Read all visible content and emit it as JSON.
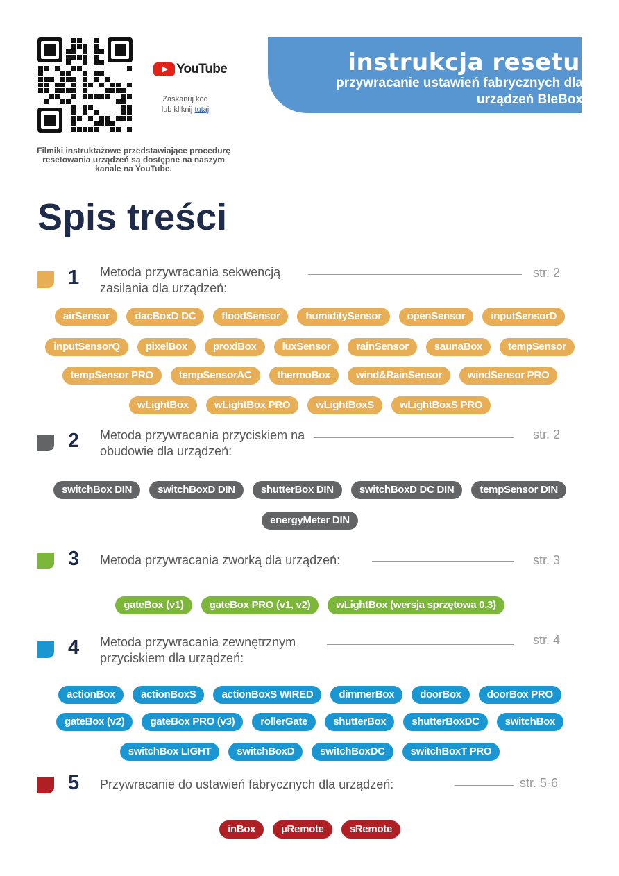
{
  "header": {
    "youtube": "YouTube",
    "scan_line1": "Zaskanuj kod",
    "scan_line2": "lub kliknij",
    "scan_link": "tutaj",
    "note": "Filmiki instruktażowe przedstawiające procedurę resetowania urządzeń są dostępne na naszym kanale na YouTube.",
    "banner_title": "instrukcja resetu",
    "banner_subtitle": "przywracanie ustawień fabrycznych dla urządzeń BleBox"
  },
  "toc_title": "Spis treści",
  "sections": [
    {
      "number": 1,
      "title": "Metoda przywracania sekwencją zasilania dla urządzeń:",
      "page": "str. 2",
      "device_rows": [
        [
          "airSensor",
          "dacBoxD DC",
          "floodSensor",
          "humiditySensor",
          "openSensor",
          "inputSensorD"
        ],
        [
          "inputSensorQ",
          "pixelBox",
          "proxiBox",
          "luxSensor",
          "rainSensor",
          "saunaBox",
          "tempSensor"
        ],
        [
          "tempSensor PRO",
          "tempSensorAC",
          "thermoBox",
          "wind&RainSensor",
          "windSensor PRO"
        ],
        [
          "wLightBox",
          "wLightBox PRO",
          "wLightBoxS",
          "wLightBoxS PRO"
        ]
      ]
    },
    {
      "number": 2,
      "title": "Metoda przywracania przyciskiem na obudowie dla urządzeń:",
      "page": "str. 2",
      "device_rows": [
        [
          "switchBox DIN",
          "switchBoxD DIN",
          "shutterBox DIN",
          "switchBoxD DC DIN",
          "tempSensor DIN"
        ],
        [
          "energyMeter DIN"
        ]
      ]
    },
    {
      "number": 3,
      "title": "Metoda przywracania zworką dla urządzeń:",
      "page": "str. 3",
      "device_rows": [
        [
          "gateBox (v1)",
          "gateBox PRO (v1, v2)",
          "wLightBox (wersja sprzętowa 0.3)"
        ]
      ]
    },
    {
      "number": 4,
      "title": "Metoda przywracania zewnętrznym przyciskiem dla urządzeń:",
      "page": "str. 4",
      "device_rows": [
        [
          "actionBox",
          "actionBoxS",
          "actionBoxS WIRED",
          "dimmerBox",
          "doorBox",
          "doorBox PRO"
        ],
        [
          "gateBox (v2)",
          "gateBox PRO (v3)",
          "rollerGate",
          "shutterBox",
          "shutterBoxDC",
          "switchBox"
        ],
        [
          "switchBox LIGHT",
          "switchBoxD",
          "switchBoxDC",
          "switchBoxT PRO"
        ]
      ]
    },
    {
      "number": 5,
      "title": "Przywracanie do ustawień fabrycznych dla urządzeń:",
      "page": "str. 5-6",
      "device_rows": [
        [
          "inBox",
          "µRemote",
          "sRemote"
        ]
      ]
    }
  ]
}
